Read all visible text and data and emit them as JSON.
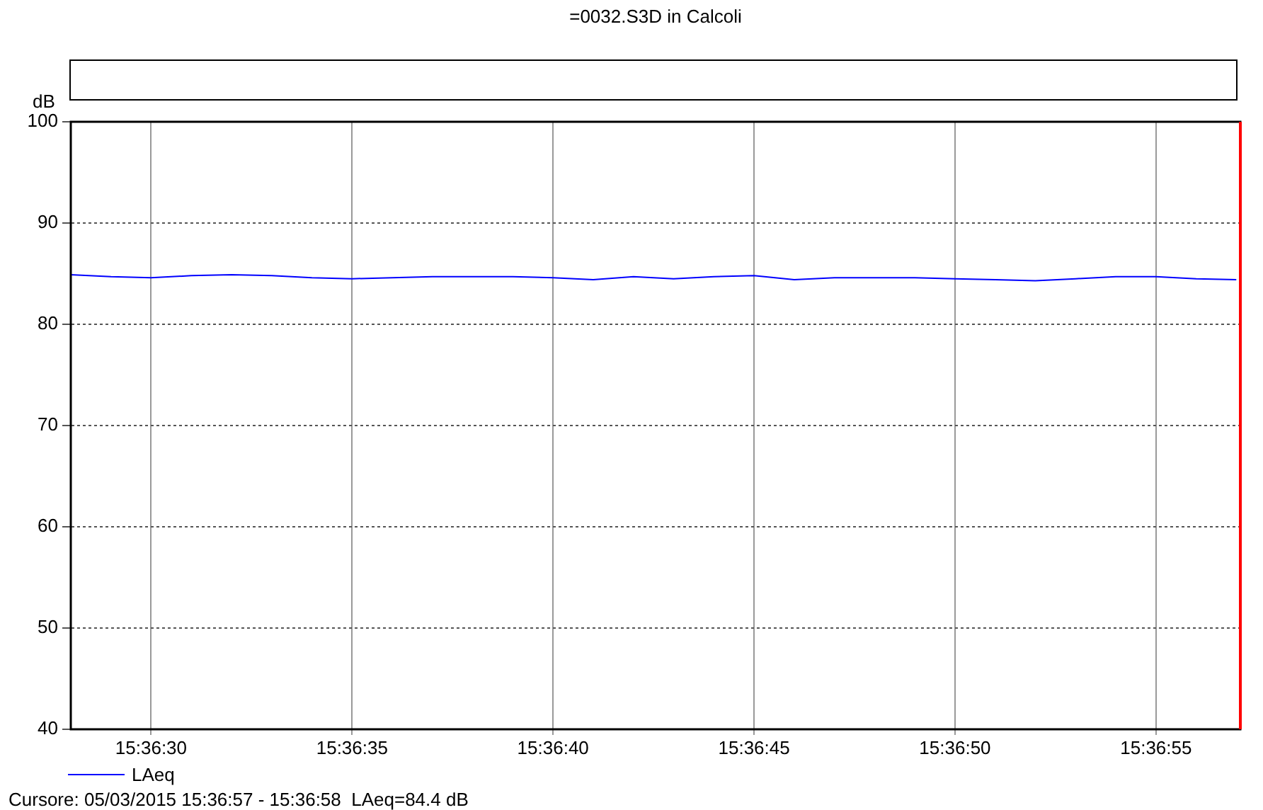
{
  "chart_data": {
    "type": "line",
    "title": "=0032.S3D in Calcoli",
    "ylabel": "dB",
    "annotations": [
      "Cursore: 05/03/2015 15:36:57 - 15:36:58  LAeq=84.4 dB"
    ],
    "x": [
      15.607778,
      15.608056,
      15.608333,
      15.608611,
      15.608889,
      15.609167,
      15.609444,
      15.609722,
      15.61,
      15.610278,
      15.610556,
      15.610833,
      15.611111,
      15.611389,
      15.611667,
      15.611944,
      15.612222,
      15.6125,
      15.612778,
      15.613056,
      15.613333,
      15.613611,
      15.613889,
      15.614167,
      15.614444,
      15.614722,
      15.615,
      15.615278,
      15.615556,
      15.615833
    ],
    "series": [
      {
        "name": "LAeq",
        "color": "#0000ff",
        "values": [
          84.9,
          84.7,
          84.6,
          84.8,
          84.9,
          84.8,
          84.6,
          84.5,
          84.6,
          84.7,
          84.7,
          84.7,
          84.6,
          84.4,
          84.7,
          84.5,
          84.7,
          84.8,
          84.4,
          84.6,
          84.6,
          84.6,
          84.5,
          84.4,
          84.3,
          84.5,
          84.7,
          84.7,
          84.5,
          84.4
        ]
      }
    ],
    "xlim": [
      15.607778,
      15.615861
    ],
    "xticks": [
      {
        "value": 15.608333,
        "label": "15:36:30"
      },
      {
        "value": 15.609722,
        "label": "15:36:35"
      },
      {
        "value": 15.611111,
        "label": "15:36:40"
      },
      {
        "value": 15.6125,
        "label": "15:36:45"
      },
      {
        "value": 15.613889,
        "label": "15:36:50"
      },
      {
        "value": 15.615278,
        "label": "15:36:55"
      }
    ],
    "ylim": [
      40,
      100
    ],
    "yticks": [
      40,
      50,
      60,
      70,
      80,
      90,
      100
    ],
    "grid": true,
    "legend": "bottom left",
    "ref_lines": [
      {
        "axis": "x",
        "value": 15.615861,
        "color": "#ff0000"
      }
    ]
  }
}
